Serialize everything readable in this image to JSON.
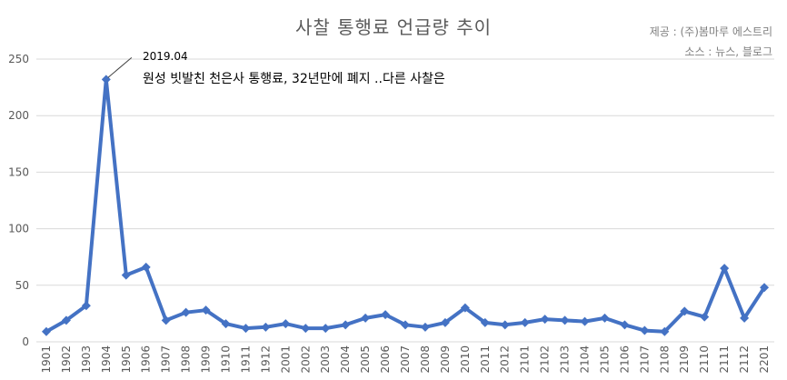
{
  "title": "사찰 통행료 언급량 추이",
  "source": {
    "line1": "제공 : (주)봄마루 에스트리",
    "line2": "소스 : 뉴스, 블로그"
  },
  "colors": {
    "series": "#4472C4",
    "grid": "#d9d9d9",
    "axis_text": "#595959"
  },
  "chart_data": {
    "type": "line",
    "x": [
      "1901",
      "1902",
      "1903",
      "1904",
      "1905",
      "1906",
      "1907",
      "1908",
      "1909",
      "1910",
      "1911",
      "1912",
      "2001",
      "2002",
      "2003",
      "2004",
      "2005",
      "2006",
      "2007",
      "2008",
      "2009",
      "2010",
      "2011",
      "2012",
      "2101",
      "2102",
      "2103",
      "2104",
      "2105",
      "2106",
      "2107",
      "2108",
      "2109",
      "2110",
      "2111",
      "2112",
      "2201"
    ],
    "series": [
      {
        "values": [
          9,
          19,
          32,
          232,
          59,
          66,
          19,
          26,
          28,
          16,
          12,
          13,
          16,
          12,
          12,
          15,
          21,
          24,
          15,
          13,
          17,
          30,
          17,
          15,
          17,
          20,
          19,
          18,
          21,
          15,
          10,
          9,
          27,
          22,
          65,
          21,
          48
        ]
      }
    ],
    "ylim": [
      0,
      250
    ],
    "yticks": [
      0,
      50,
      100,
      150,
      200,
      250
    ],
    "grid": true,
    "marker": "diamond",
    "annotation": {
      "x": "1904",
      "date": "2019.04",
      "text": "원성 빗발친 천은사 통행료, 32년만에 폐지 ..다른 사찰은"
    }
  }
}
